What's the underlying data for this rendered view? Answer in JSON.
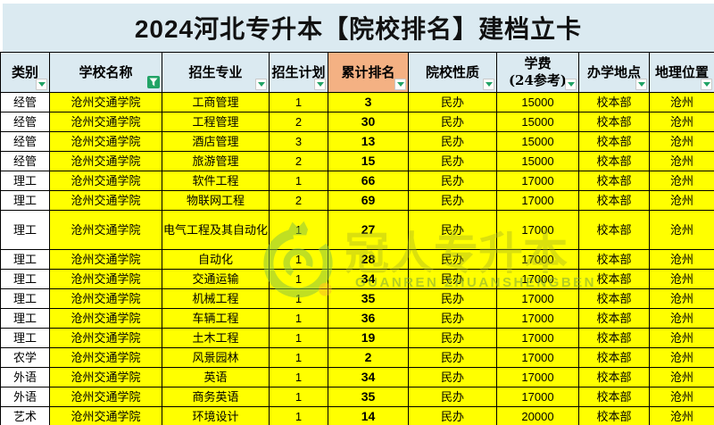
{
  "title": "2024河北专升本【院校排名】建档立卡",
  "watermark": {
    "brand": "冠人专升本",
    "brand_latin": "GUANREN ZHUANSHENGBEN"
  },
  "colors": {
    "cell_yellow": "#FFFF00",
    "band_blue": "#DBEAF1",
    "rank_header_orange": "#F4B183",
    "filter_green": "#21A366",
    "watermark_green": "#8DC63F",
    "watermark_dot_orange": "#F0A830"
  },
  "table": {
    "columns": [
      {
        "label": "类别"
      },
      {
        "label": "学校名称",
        "filter_active": true
      },
      {
        "label": "招生专业"
      },
      {
        "label": "招生计划"
      },
      {
        "label": "累计排名",
        "highlight": true
      },
      {
        "label": "院校性质"
      },
      {
        "label": "学费\n(24参考)"
      },
      {
        "label": "办学地点"
      },
      {
        "label": "地理位置"
      }
    ],
    "rows": [
      [
        "经管",
        "沧州交通学院",
        "工商管理",
        "1",
        "3",
        "民办",
        "15000",
        "校本部",
        "沧州"
      ],
      [
        "经管",
        "沧州交通学院",
        "工程管理",
        "2",
        "30",
        "民办",
        "15000",
        "校本部",
        "沧州"
      ],
      [
        "经管",
        "沧州交通学院",
        "酒店管理",
        "3",
        "13",
        "民办",
        "15000",
        "校本部",
        "沧州"
      ],
      [
        "经管",
        "沧州交通学院",
        "旅游管理",
        "2",
        "15",
        "民办",
        "15000",
        "校本部",
        "沧州"
      ],
      [
        "理工",
        "沧州交通学院",
        "软件工程",
        "1",
        "66",
        "民办",
        "17000",
        "校本部",
        "沧州"
      ],
      [
        "理工",
        "沧州交通学院",
        "物联网工程",
        "2",
        "69",
        "民办",
        "17000",
        "校本部",
        "沧州"
      ],
      [
        "理工",
        "沧州交通学院",
        "电气工程及其自动化",
        "1",
        "27",
        "民办",
        "17000",
        "校本部",
        "沧州"
      ],
      [
        "理工",
        "沧州交通学院",
        "自动化",
        "1",
        "28",
        "民办",
        "17000",
        "校本部",
        "沧州"
      ],
      [
        "理工",
        "沧州交通学院",
        "交通运输",
        "1",
        "34",
        "民办",
        "17000",
        "校本部",
        "沧州"
      ],
      [
        "理工",
        "沧州交通学院",
        "机械工程",
        "1",
        "35",
        "民办",
        "17000",
        "校本部",
        "沧州"
      ],
      [
        "理工",
        "沧州交通学院",
        "车辆工程",
        "1",
        "36",
        "民办",
        "17000",
        "校本部",
        "沧州"
      ],
      [
        "理工",
        "沧州交通学院",
        "土木工程",
        "1",
        "19",
        "民办",
        "17000",
        "校本部",
        "沧州"
      ],
      [
        "农学",
        "沧州交通学院",
        "风景园林",
        "1",
        "2",
        "民办",
        "17000",
        "校本部",
        "沧州"
      ],
      [
        "外语",
        "沧州交通学院",
        "英语",
        "1",
        "34",
        "民办",
        "17000",
        "校本部",
        "沧州"
      ],
      [
        "外语",
        "沧州交通学院",
        "商务英语",
        "1",
        "35",
        "民办",
        "17000",
        "校本部",
        "沧州"
      ],
      [
        "艺术",
        "沧州交通学院",
        "环境设计",
        "1",
        "14",
        "民办",
        "20000",
        "校本部",
        "沧州"
      ]
    ]
  }
}
